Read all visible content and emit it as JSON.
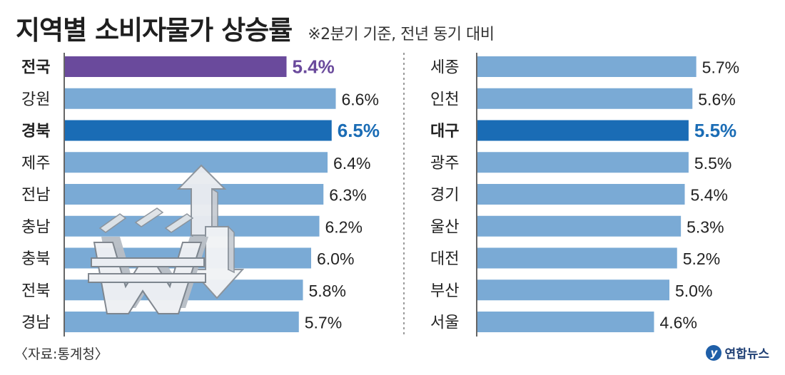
{
  "header": {
    "title": "지역별 소비자물가 상승률",
    "subtitle": "※2분기 기준, 전년 동기 대비"
  },
  "footer": {
    "source": "〈자료:통계청〉",
    "logo": "연합뉴스"
  },
  "colors": {
    "bar_default": "#7aaad5",
    "bar_national": "#6a4a9c",
    "bar_highlight": "#1a6cb5",
    "text_default": "#222222"
  },
  "chart_data": [
    {
      "type": "bar",
      "orientation": "horizontal",
      "unit": "%",
      "categories": [
        "전국",
        "강원",
        "경북",
        "제주",
        "전남",
        "충남",
        "충북",
        "전북",
        "경남"
      ],
      "values": [
        5.4,
        6.6,
        6.5,
        6.4,
        6.3,
        6.2,
        6.0,
        5.8,
        5.7
      ],
      "value_labels": [
        "5.4%",
        "6.6%",
        "6.5%",
        "6.4%",
        "6.3%",
        "6.2%",
        "6.0%",
        "5.8%",
        "5.7%"
      ],
      "highlight": {
        "전국": "national",
        "경북": "highlight"
      },
      "grid": false
    },
    {
      "type": "bar",
      "orientation": "horizontal",
      "unit": "%",
      "categories": [
        "세종",
        "인천",
        "대구",
        "광주",
        "경기",
        "울산",
        "대전",
        "부산",
        "서울"
      ],
      "values": [
        5.7,
        5.6,
        5.5,
        5.5,
        5.4,
        5.3,
        5.2,
        5.0,
        4.6
      ],
      "value_labels": [
        "5.7%",
        "5.6%",
        "5.5%",
        "5.5%",
        "5.4%",
        "5.3%",
        "5.2%",
        "5.0%",
        "4.6%"
      ],
      "highlight": {
        "대구": "highlight"
      },
      "grid": false
    }
  ],
  "illustration": {
    "icons": [
      "won-currency-icon",
      "up-arrow-icon",
      "down-arrow-icon"
    ]
  }
}
